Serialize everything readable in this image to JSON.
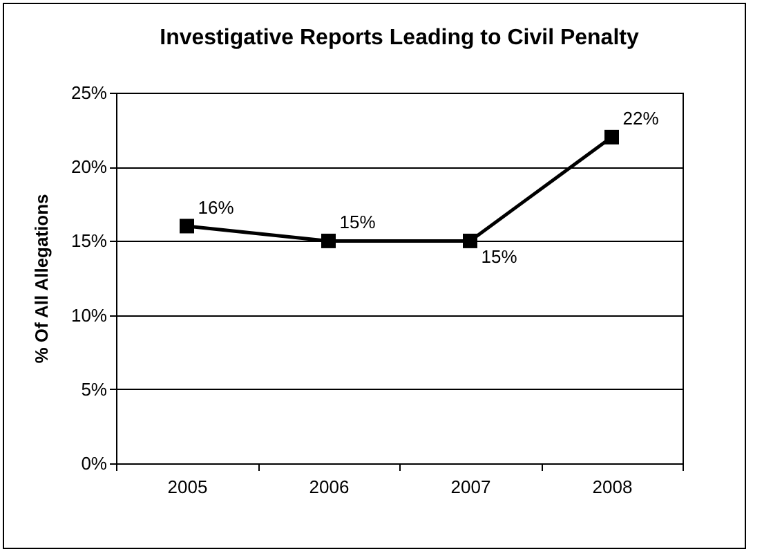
{
  "chart_data": {
    "type": "line",
    "title": "Investigative Reports Leading to Civil Penalty",
    "ylabel": "% Of All Allegations",
    "categories": [
      "2005",
      "2006",
      "2007",
      "2008"
    ],
    "series": [
      {
        "color": "#000000",
        "values": [
          16,
          15,
          15,
          22
        ],
        "value_labels": [
          "16%",
          "15%",
          "15%",
          "22%"
        ]
      }
    ],
    "ylim": [
      0,
      25
    ],
    "yticks": [
      {
        "value": 0,
        "label": "0%"
      },
      {
        "value": 5,
        "label": "5%"
      },
      {
        "value": 10,
        "label": "10%"
      },
      {
        "value": 15,
        "label": "15%"
      },
      {
        "value": 20,
        "label": "20%"
      },
      {
        "value": 25,
        "label": "25%"
      }
    ],
    "grid": "y",
    "marker": "square",
    "legend": false
  }
}
